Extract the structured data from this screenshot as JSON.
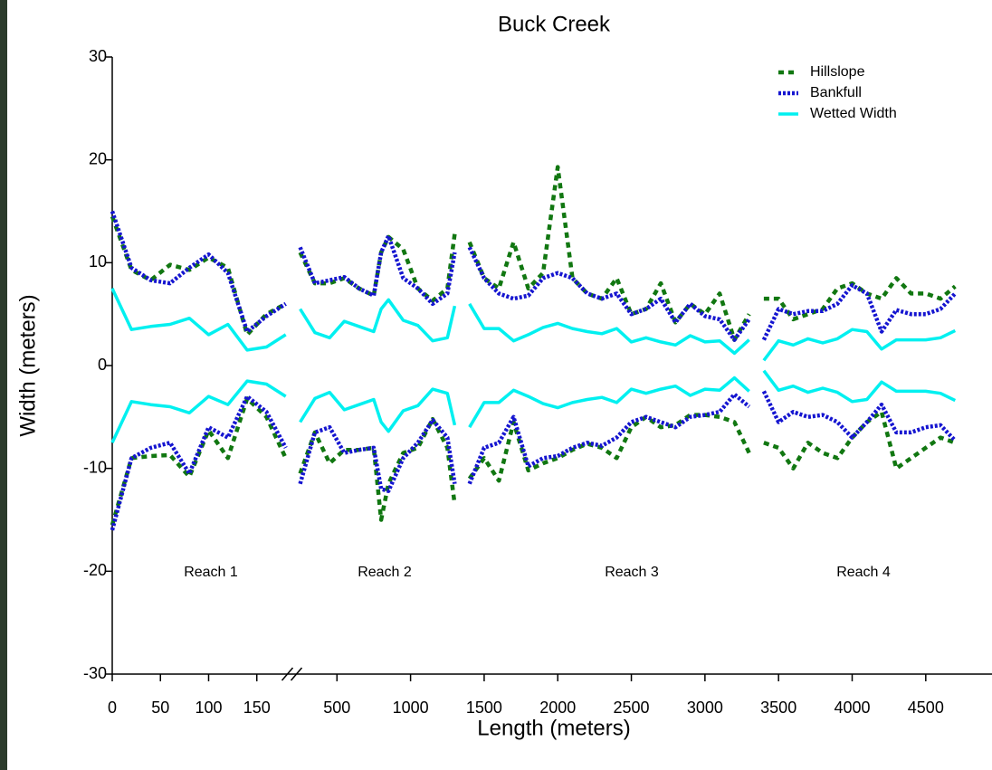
{
  "chart_data": {
    "type": "line",
    "title": "Buck Creek",
    "x_label": "Length (meters)",
    "y_label": "Width (meters)",
    "xlim": [
      0,
      4950
    ],
    "xbreak": [
      185,
      240
    ],
    "xticks": [
      0,
      50,
      100,
      150,
      500,
      1000,
      1500,
      2000,
      2500,
      3000,
      3500,
      4000,
      4500
    ],
    "ylim": [
      -30,
      30
    ],
    "yticks": [
      30,
      20,
      10,
      0,
      -10,
      -20,
      -30
    ],
    "legend": "top-right",
    "annotations": [
      "Reach 1",
      "Reach 2",
      "Reach 3",
      "Reach 4"
    ],
    "x": [
      0,
      20,
      40,
      60,
      80,
      100,
      120,
      140,
      160,
      180,
      215,
      250,
      350,
      450,
      550,
      650,
      750,
      800,
      850,
      950,
      1050,
      1150,
      1250,
      1300,
      1350,
      1400,
      1500,
      1600,
      1700,
      1800,
      1900,
      2000,
      2100,
      2200,
      2300,
      2400,
      2500,
      2600,
      2700,
      2800,
      2900,
      3000,
      3100,
      3200,
      3300,
      3350,
      3400,
      3500,
      3600,
      3700,
      3800,
      3900,
      4000,
      4100,
      4200,
      4300,
      4400,
      4500,
      4600,
      4700
    ],
    "series": [
      {
        "name": "Hillslope",
        "color": "#117711",
        "values": [
          14.5,
          9.3,
          8.3,
          9.8,
          9.3,
          10.5,
          9.5,
          3,
          5,
          6,
          null,
          11,
          8,
          8,
          8.5,
          7.5,
          6.8,
          11,
          12.5,
          11.3,
          7.5,
          6.3,
          7.5,
          12.8,
          null,
          12,
          8.5,
          7.5,
          12,
          7.5,
          9,
          19.3,
          8.5,
          7,
          6.5,
          8.5,
          5,
          5.5,
          8,
          4.2,
          6,
          5,
          7,
          2.5,
          5,
          null,
          6.5,
          6.5,
          4.5,
          5,
          5.5,
          7.5,
          8,
          7,
          6.5,
          8.5,
          7,
          7,
          6.5,
          7.7
        ],
        "lower_values": [
          -15.5,
          -9,
          -8.8,
          -8.7,
          -10.8,
          -6.3,
          -9,
          -3.2,
          -5,
          -9,
          null,
          -10.5,
          -6.5,
          -9.5,
          -8.2,
          -8.2,
          -8,
          -15,
          -11.5,
          -8.5,
          -8,
          -5.2,
          -8,
          -13.5,
          null,
          -11,
          -9,
          -11.2,
          -5.5,
          -10.2,
          -9.5,
          -9,
          -8.2,
          -7.6,
          -8,
          -9,
          -6,
          -5,
          -6,
          -5.8,
          -4.8,
          -4.8,
          -5,
          -5.5,
          -8.5,
          null,
          -7.5,
          -8,
          -10,
          -7.5,
          -8.5,
          -9,
          -7,
          -5.5,
          -4.5,
          -10,
          -9,
          -8,
          -7,
          -7.5
        ]
      },
      {
        "name": "Bankfull",
        "color": "#1515d0",
        "values": [
          15,
          9.5,
          8.3,
          8,
          9.5,
          10.8,
          9,
          3.3,
          4.8,
          6,
          null,
          11.5,
          8,
          8.3,
          8.6,
          7.5,
          6.8,
          11,
          12.6,
          8.5,
          7.5,
          6,
          7,
          11,
          null,
          11.5,
          8.5,
          7,
          6.5,
          6.8,
          8.5,
          9,
          8.5,
          7,
          6.5,
          7,
          5,
          5.5,
          6.5,
          4.2,
          6,
          4.8,
          4.5,
          2.5,
          4.5,
          null,
          2.5,
          5.5,
          5,
          5.3,
          5.3,
          6,
          7.8,
          7,
          3.3,
          5.4,
          5,
          5,
          5.5,
          7
        ],
        "lower_values": [
          -16,
          -9,
          -8,
          -7.5,
          -10.5,
          -6,
          -7,
          -3,
          -4.5,
          -8,
          null,
          -11.5,
          -6.5,
          -6,
          -8.5,
          -8.2,
          -8,
          -12,
          -12.2,
          -9,
          -7.5,
          -5.3,
          -7,
          -11.5,
          null,
          -11.5,
          -8,
          -7.5,
          -5,
          -9.8,
          -9,
          -8.8,
          -8,
          -7.5,
          -7.8,
          -7,
          -5.5,
          -5,
          -5.5,
          -6,
          -5,
          -4.8,
          -4.5,
          -2.8,
          -4,
          null,
          -2.5,
          -5.5,
          -4.5,
          -5,
          -4.8,
          -5.5,
          -7,
          -5.5,
          -3.8,
          -6.5,
          -6.5,
          -6,
          -5.8,
          -7.3
        ]
      },
      {
        "name": "Wetted Width",
        "color": "#00f0f0",
        "values": [
          7.5,
          3.5,
          3.8,
          4,
          4.6,
          3,
          4,
          1.5,
          1.8,
          3,
          null,
          5.5,
          3.2,
          2.7,
          4.3,
          3.8,
          3.3,
          5.5,
          6.4,
          4.4,
          3.9,
          2.4,
          2.7,
          5.8,
          null,
          6,
          3.6,
          3.6,
          2.4,
          3,
          3.7,
          4.1,
          3.6,
          3.3,
          3.1,
          3.6,
          2.3,
          2.7,
          2.3,
          2,
          2.9,
          2.3,
          2.4,
          1.2,
          2.5,
          null,
          0.5,
          2.4,
          2,
          2.6,
          2.2,
          2.6,
          3.5,
          3.3,
          1.6,
          2.5,
          2.5,
          2.5,
          2.7,
          3.4
        ],
        "lower_values": [
          -7.5,
          -3.5,
          -3.8,
          -4,
          -4.6,
          -3,
          -3.8,
          -1.5,
          -1.8,
          -3,
          null,
          -5.5,
          -3.2,
          -2.6,
          -4.3,
          -3.8,
          -3.3,
          -5.5,
          -6.4,
          -4.4,
          -3.9,
          -2.3,
          -2.7,
          -5.8,
          null,
          -6,
          -3.6,
          -3.6,
          -2.4,
          -3,
          -3.7,
          -4.1,
          -3.6,
          -3.3,
          -3.1,
          -3.6,
          -2.3,
          -2.7,
          -2.3,
          -2,
          -2.9,
          -2.3,
          -2.4,
          -1.2,
          -2.5,
          null,
          -0.5,
          -2.4,
          -2,
          -2.6,
          -2.2,
          -2.6,
          -3.5,
          -3.3,
          -1.6,
          -2.5,
          -2.5,
          -2.5,
          -2.7,
          -3.4
        ]
      }
    ]
  }
}
